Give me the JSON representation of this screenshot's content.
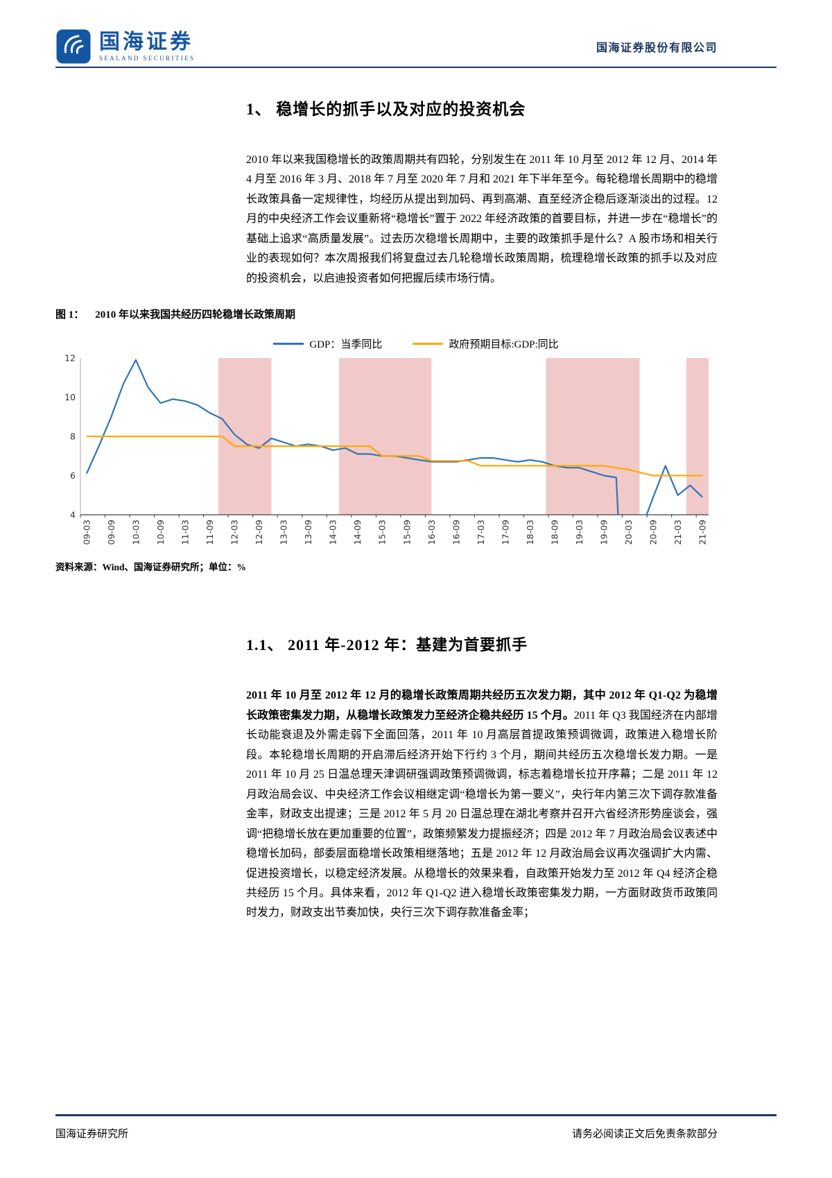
{
  "header": {
    "logo_text": "国海证券",
    "logo_subtext": "SEALAND SECURITIES",
    "company_name": "国海证券股份有限公司"
  },
  "section1": {
    "title": "1、 稳增长的抓手以及对应的投资机会",
    "paragraph": "2010 年以来我国稳增长的政策周期共有四轮，分别发生在 2011 年 10 月至 2012 年 12 月、2014 年 4 月至 2016 年 3 月、2018 年 7 月至 2020 年 7 月和 2021 年下半年至今。每轮稳增长周期中的稳增长政策具备一定规律性，均经历从提出到加码、再到高潮、直至经济企稳后逐渐淡出的过程。12 月的中央经济工作会议重新将“稳增长”置于 2022 年经济政策的首要目标，并进一步在“稳增长”的基础上追求“高质量发展”。过去历次稳增长周期中，主要的政策抓手是什么？A 股市场和相关行业的表现如何？本次周报我们将复盘过去几轮稳增长政策周期，梳理稳增长政策的抓手以及对应的投资机会，以启迪投资者如何把握后续市场行情。"
  },
  "figure": {
    "caption_label": "图 1：",
    "caption_text": "2010 年以来我国共经历四轮稳增长政策周期",
    "source": "资料来源：Wind、国海证券研究所；单位：%"
  },
  "chart_data": {
    "type": "line",
    "title": "2010 年以来我国共经历四轮稳增长政策周期",
    "ylabel": "%",
    "ylim": [
      4,
      12
    ],
    "yticks": [
      4,
      6,
      8,
      10,
      12
    ],
    "grid": false,
    "legend_position": "top",
    "xtick_step": 2,
    "x": [
      "09-03",
      "09-06",
      "09-09",
      "09-12",
      "10-03",
      "10-06",
      "10-09",
      "10-12",
      "11-03",
      "11-06",
      "11-09",
      "11-12",
      "12-03",
      "12-06",
      "12-09",
      "12-12",
      "13-03",
      "13-06",
      "13-09",
      "13-12",
      "14-03",
      "14-06",
      "14-09",
      "14-12",
      "15-03",
      "15-06",
      "15-09",
      "15-12",
      "16-03",
      "16-06",
      "16-09",
      "16-12",
      "17-03",
      "17-06",
      "17-09",
      "17-12",
      "18-03",
      "18-06",
      "18-09",
      "18-12",
      "19-03",
      "19-06",
      "19-09",
      "19-12",
      "20-03",
      "20-06",
      "20-09",
      "20-12",
      "21-03",
      "21-06",
      "21-09"
    ],
    "series": [
      {
        "name": "GDP：当季同比",
        "color": "#2E75B6",
        "values": [
          6.1,
          7.5,
          9.0,
          10.7,
          11.9,
          10.5,
          9.7,
          9.9,
          9.8,
          9.6,
          9.2,
          8.9,
          8.1,
          7.6,
          7.4,
          7.9,
          7.7,
          7.5,
          7.6,
          7.5,
          7.3,
          7.4,
          7.1,
          7.1,
          7.0,
          7.0,
          6.9,
          6.8,
          6.7,
          6.7,
          6.7,
          6.8,
          6.9,
          6.9,
          6.8,
          6.7,
          6.8,
          6.7,
          6.5,
          6.4,
          6.4,
          6.2,
          6.0,
          5.9,
          -6.8,
          3.2,
          4.9,
          6.5,
          5.0,
          5.5,
          4.9
        ]
      },
      {
        "name": "政府预期目标:GDP:同比",
        "color": "#FFA800",
        "values": [
          8,
          8,
          8,
          8,
          8,
          8,
          8,
          8,
          8,
          8,
          8,
          8,
          7.5,
          7.5,
          7.5,
          7.5,
          7.5,
          7.5,
          7.5,
          7.5,
          7.5,
          7.5,
          7.5,
          7.5,
          7.0,
          7.0,
          7.0,
          7.0,
          6.75,
          6.75,
          6.75,
          6.75,
          6.5,
          6.5,
          6.5,
          6.5,
          6.5,
          6.5,
          6.5,
          6.5,
          6.5,
          6.5,
          6.5,
          6.4,
          6.3,
          6.15,
          6.0,
          6.0,
          6.0,
          6.0,
          6.0
        ]
      }
    ],
    "bands": [
      [
        10.7,
        15.0
      ],
      [
        20.5,
        28.0
      ],
      [
        37.3,
        44.9
      ],
      [
        48.7,
        51.5
      ]
    ],
    "band_color": "#F2C9C9"
  },
  "section11": {
    "title": "1.1、 2011 年-2012 年：基建为首要抓手",
    "bold_text": "2011 年 10 月至 2012 年 12 月的稳增长政策周期共经历五次发力期，其中 2012 年 Q1-Q2 为稳增长政策密集发力期，从稳增长政策发力至经济企稳共经历 15 个月。",
    "body_text": "2011 年 Q3 我国经济在内部增长动能衰退及外需走弱下全面回落，2011 年 10 月高层首提政策预调微调，政策进入稳增长阶段。本轮稳增长周期的开启滞后经济开始下行约 3 个月，期间共经历五次稳增长发力期。一是 2011 年 10 月 25 日温总理天津调研强调政策预调微调，标志着稳增长拉开序幕；二是 2011 年 12 月政治局会议、中央经济工作会议相继定调“稳增长为第一要义”，央行年内第三次下调存款准备金率，财政支出提速；三是 2012 年 5 月 20 日温总理在湖北考察并召开六省经济形势座谈会，强调“把稳增长放在更加重要的位置”，政策频繁发力提振经济；四是 2012 年 7 月政治局会议表述中稳增长加码，部委层面稳增长政策相继落地；五是 2012 年 12 月政治局会议再次强调扩大内需、促进投资增长，以稳定经济发展。从稳增长的效果来看，自政策开始发力至 2012 年 Q4 经济企稳共经历 15 个月。具体来看，2012 年 Q1-Q2 进入稳增长政策密集发力期，一方面财政货币政策同时发力，财政支出节奏加快，央行三次下调存款准备金率；"
  },
  "footer": {
    "left": "国海证券研究所",
    "right": "请务必阅读正文后免责条款部分"
  }
}
